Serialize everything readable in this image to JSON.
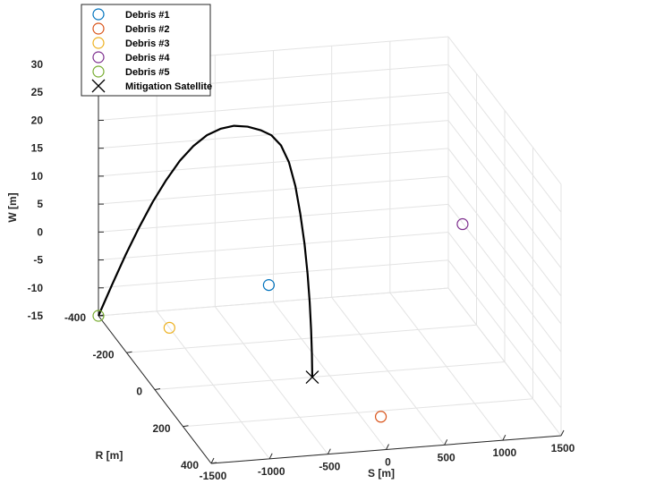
{
  "chart_data": {
    "type": "scatter3d",
    "title": "",
    "xlabel": "S [m]",
    "ylabel": "R [m]",
    "zlabel": "W [m]",
    "xlim": [
      -1500,
      1500
    ],
    "ylim": [
      -400,
      400
    ],
    "zlim": [
      -15,
      30
    ],
    "xticks": [
      -1500,
      -1000,
      -500,
      0,
      500,
      1000,
      1500
    ],
    "yticks": [
      -400,
      -200,
      0,
      200,
      400
    ],
    "zticks": [
      -15,
      -10,
      -5,
      0,
      5,
      10,
      15,
      20,
      25,
      30
    ],
    "grid": true,
    "legend_position": "top-left",
    "series": [
      {
        "name": "Debris #1",
        "marker": "circle",
        "color": "#0072BD",
        "points": [
          [
            -450,
            -60,
            0
          ]
        ]
      },
      {
        "name": "Debris #2",
        "marker": "circle",
        "color": "#D95319",
        "points": [
          [
            160,
            230,
            -15
          ]
        ]
      },
      {
        "name": "Debris #3",
        "marker": "circle",
        "color": "#EDB120",
        "points": [
          [
            -1000,
            -310,
            -15
          ]
        ]
      },
      {
        "name": "Debris #4",
        "marker": "circle",
        "color": "#7E2F8E",
        "points": [
          [
            1320,
            -150,
            5
          ]
        ]
      },
      {
        "name": "Debris #5",
        "marker": "circle",
        "color": "#77AC30",
        "points": [
          [
            -1500,
            -400,
            -15
          ]
        ]
      },
      {
        "name": "Mitigation Satellite",
        "marker": "x",
        "color": "#000000",
        "points": [
          [
            -150,
            0,
            -15
          ]
        ]
      }
    ],
    "trajectory": {
      "color": "#000000",
      "points": [
        [
          -1500,
          -400,
          -15
        ],
        [
          -1420,
          -370,
          -8.6
        ],
        [
          -1340,
          -340,
          -2.4
        ],
        [
          -1260,
          -310,
          3.4
        ],
        [
          -1180,
          -280,
          8.8
        ],
        [
          -1100,
          -250,
          13.6
        ],
        [
          -1020,
          -220,
          17.9
        ],
        [
          -940,
          -190,
          21.4
        ],
        [
          -860,
          -160,
          24.2
        ],
        [
          -780,
          -130,
          26.2
        ],
        [
          -700,
          -100,
          27.6
        ],
        [
          -620,
          -70,
          28.3
        ],
        [
          -540,
          -40,
          28.5
        ],
        [
          -470,
          -25,
          28.0
        ],
        [
          -400,
          -15,
          26.4
        ],
        [
          -340,
          -8,
          23.5
        ],
        [
          -290,
          -4,
          19.3
        ],
        [
          -250,
          -2,
          14.3
        ],
        [
          -215,
          -1,
          8.9
        ],
        [
          -190,
          0,
          3.5
        ],
        [
          -172,
          0,
          -1.6
        ],
        [
          -160,
          0,
          -6.5
        ],
        [
          -153,
          0,
          -10.9
        ],
        [
          -150,
          0,
          -15
        ]
      ]
    }
  }
}
